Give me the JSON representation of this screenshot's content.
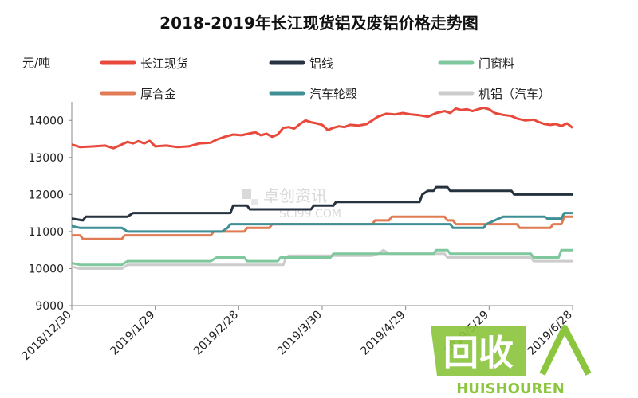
{
  "chart_data": {
    "type": "line",
    "title": "2018-2019年长江现货铝及废铝价格走势图",
    "ylabel": "元/吨",
    "xlabel": "",
    "ylim": [
      9000,
      14500
    ],
    "yticks": [
      9000,
      10000,
      11000,
      12000,
      13000,
      14000
    ],
    "xlim": [
      0,
      180
    ],
    "xticks": [
      {
        "label": "2018/12/30",
        "t": 0
      },
      {
        "label": "2019/1/29",
        "t": 30
      },
      {
        "label": "2019/2/28",
        "t": 60
      },
      {
        "label": "2019/3/30",
        "t": 90
      },
      {
        "label": "2019/4/29",
        "t": 120
      },
      {
        "label": "2019/5/29",
        "t": 150
      },
      {
        "label": "2019/6/28",
        "t": 180
      }
    ],
    "series": [
      {
        "name": "长江现货",
        "color": "#e8493b",
        "width": 3,
        "points": [
          [
            0,
            13350
          ],
          [
            3,
            13280
          ],
          [
            8,
            13300
          ],
          [
            12,
            13320
          ],
          [
            15,
            13250
          ],
          [
            18,
            13350
          ],
          [
            20,
            13420
          ],
          [
            22,
            13380
          ],
          [
            24,
            13440
          ],
          [
            26,
            13380
          ],
          [
            28,
            13450
          ],
          [
            30,
            13300
          ],
          [
            34,
            13320
          ],
          [
            38,
            13280
          ],
          [
            42,
            13300
          ],
          [
            46,
            13380
          ],
          [
            50,
            13400
          ],
          [
            52,
            13480
          ],
          [
            55,
            13560
          ],
          [
            58,
            13620
          ],
          [
            61,
            13600
          ],
          [
            64,
            13650
          ],
          [
            66,
            13680
          ],
          [
            68,
            13600
          ],
          [
            70,
            13640
          ],
          [
            72,
            13560
          ],
          [
            74,
            13620
          ],
          [
            76,
            13800
          ],
          [
            78,
            13820
          ],
          [
            80,
            13780
          ],
          [
            82,
            13900
          ],
          [
            84,
            14000
          ],
          [
            86,
            13950
          ],
          [
            88,
            13920
          ],
          [
            90,
            13880
          ],
          [
            92,
            13740
          ],
          [
            94,
            13800
          ],
          [
            96,
            13840
          ],
          [
            98,
            13820
          ],
          [
            100,
            13880
          ],
          [
            103,
            13860
          ],
          [
            106,
            13900
          ],
          [
            108,
            14000
          ],
          [
            110,
            14100
          ],
          [
            113,
            14180
          ],
          [
            116,
            14160
          ],
          [
            119,
            14200
          ],
          [
            122,
            14160
          ],
          [
            125,
            14140
          ],
          [
            128,
            14100
          ],
          [
            131,
            14200
          ],
          [
            134,
            14250
          ],
          [
            136,
            14200
          ],
          [
            138,
            14320
          ],
          [
            140,
            14280
          ],
          [
            142,
            14300
          ],
          [
            144,
            14250
          ],
          [
            146,
            14300
          ],
          [
            148,
            14340
          ],
          [
            150,
            14300
          ],
          [
            152,
            14200
          ],
          [
            155,
            14150
          ],
          [
            158,
            14120
          ],
          [
            160,
            14050
          ],
          [
            163,
            14000
          ],
          [
            166,
            14020
          ],
          [
            168,
            13950
          ],
          [
            170,
            13900
          ],
          [
            172,
            13880
          ],
          [
            174,
            13900
          ],
          [
            176,
            13850
          ],
          [
            178,
            13920
          ],
          [
            180,
            13800
          ]
        ]
      },
      {
        "name": "铝线",
        "color": "#26323f",
        "width": 3,
        "points": [
          [
            0,
            11350
          ],
          [
            4,
            11300
          ],
          [
            5,
            11400
          ],
          [
            20,
            11400
          ],
          [
            22,
            11500
          ],
          [
            57,
            11500
          ],
          [
            58,
            11700
          ],
          [
            63,
            11700
          ],
          [
            64,
            11600
          ],
          [
            86,
            11600
          ],
          [
            87,
            11700
          ],
          [
            94,
            11700
          ],
          [
            95,
            11800
          ],
          [
            125,
            11800
          ],
          [
            126,
            12000
          ],
          [
            127,
            12050
          ],
          [
            128,
            12100
          ],
          [
            130,
            12100
          ],
          [
            131,
            12200
          ],
          [
            135,
            12200
          ],
          [
            136,
            12100
          ],
          [
            158,
            12100
          ],
          [
            159,
            12000
          ],
          [
            180,
            12000
          ]
        ]
      },
      {
        "name": "门窗料",
        "color": "#7fc79d",
        "width": 3,
        "points": [
          [
            0,
            10150
          ],
          [
            3,
            10100
          ],
          [
            18,
            10100
          ],
          [
            20,
            10200
          ],
          [
            50,
            10200
          ],
          [
            52,
            10300
          ],
          [
            62,
            10300
          ],
          [
            63,
            10200
          ],
          [
            74,
            10200
          ],
          [
            75,
            10300
          ],
          [
            93,
            10300
          ],
          [
            94,
            10400
          ],
          [
            130,
            10400
          ],
          [
            131,
            10500
          ],
          [
            135,
            10500
          ],
          [
            136,
            10400
          ],
          [
            165,
            10400
          ],
          [
            166,
            10300
          ],
          [
            175,
            10300
          ],
          [
            176,
            10500
          ],
          [
            180,
            10500
          ]
        ]
      },
      {
        "name": "厚合金",
        "color": "#e07b54",
        "width": 3,
        "points": [
          [
            0,
            10900
          ],
          [
            3,
            10900
          ],
          [
            4,
            10800
          ],
          [
            18,
            10800
          ],
          [
            19,
            10900
          ],
          [
            50,
            10900
          ],
          [
            51,
            11000
          ],
          [
            62,
            11000
          ],
          [
            63,
            11100
          ],
          [
            71,
            11100
          ],
          [
            72,
            11200
          ],
          [
            108,
            11200
          ],
          [
            109,
            11300
          ],
          [
            114,
            11300
          ],
          [
            115,
            11400
          ],
          [
            134,
            11400
          ],
          [
            135,
            11300
          ],
          [
            137,
            11300
          ],
          [
            138,
            11200
          ],
          [
            160,
            11200
          ],
          [
            161,
            11100
          ],
          [
            172,
            11100
          ],
          [
            173,
            11200
          ],
          [
            176,
            11200
          ],
          [
            177,
            11400
          ],
          [
            180,
            11400
          ]
        ]
      },
      {
        "name": "汽车轮毂",
        "color": "#3f8f95",
        "width": 3,
        "points": [
          [
            0,
            11150
          ],
          [
            3,
            11100
          ],
          [
            18,
            11100
          ],
          [
            20,
            11000
          ],
          [
            54,
            11000
          ],
          [
            56,
            11100
          ],
          [
            57,
            11200
          ],
          [
            136,
            11200
          ],
          [
            137,
            11100
          ],
          [
            148,
            11100
          ],
          [
            149,
            11200
          ],
          [
            152,
            11300
          ],
          [
            155,
            11400
          ],
          [
            170,
            11400
          ],
          [
            171,
            11350
          ],
          [
            176,
            11350
          ],
          [
            177,
            11500
          ],
          [
            180,
            11500
          ]
        ]
      },
      {
        "name": "机铝（汽车）",
        "color": "#cccccc",
        "width": 3,
        "points": [
          [
            0,
            10050
          ],
          [
            3,
            10000
          ],
          [
            18,
            10000
          ],
          [
            20,
            10100
          ],
          [
            76,
            10100
          ],
          [
            77,
            10300
          ],
          [
            78,
            10350
          ],
          [
            108,
            10350
          ],
          [
            110,
            10400
          ],
          [
            112,
            10500
          ],
          [
            114,
            10400
          ],
          [
            134,
            10400
          ],
          [
            135,
            10300
          ],
          [
            165,
            10300
          ],
          [
            166,
            10200
          ],
          [
            180,
            10200
          ]
        ]
      }
    ]
  },
  "watermark": {
    "primary": "卓创资讯",
    "secondary": "SCI99.COM"
  },
  "logo": {
    "main": "回收",
    "sub": "HUISHOUREN",
    "color": "#8cc63f"
  }
}
